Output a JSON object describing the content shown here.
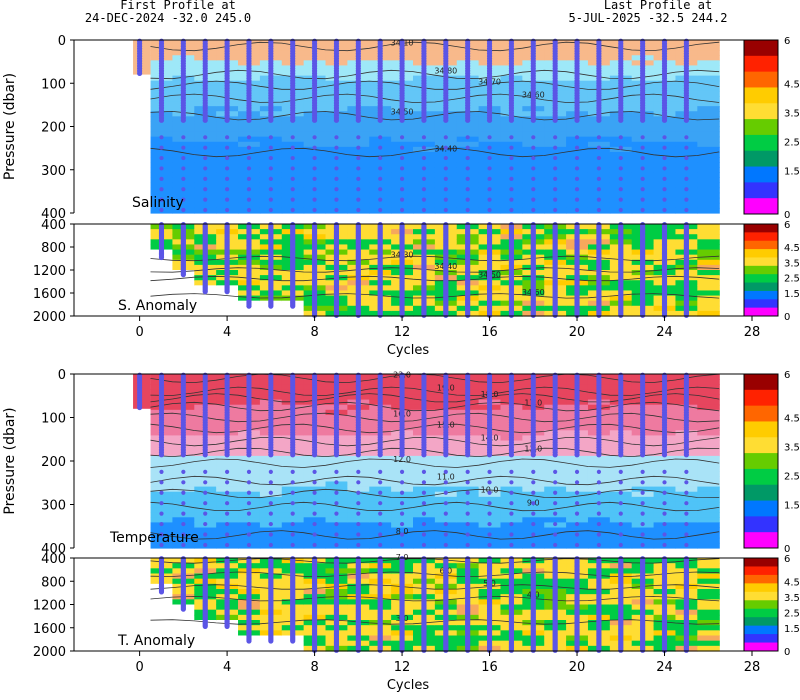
{
  "header": {
    "first_label": "First Profile at",
    "first_value": "24-DEC-2024    -32.0  245.0",
    "last_label": "Last Profile at",
    "last_value": "5-JUL-2025    -32.5  244.2"
  },
  "colors": {
    "salinity": [
      "#1e90ff",
      "#3aa3f5",
      "#63c6f7",
      "#9ee8f8",
      "#f8b98b"
    ],
    "temperature": [
      "#1e90ff",
      "#4fc3f7",
      "#a9e3f7",
      "#f3a6c6",
      "#ee7aa0",
      "#e6455e"
    ],
    "anomaly": [
      "#ff00ff",
      "#3333ff",
      "#0077ff",
      "#009966",
      "#00cc44",
      "#66cc00",
      "#ffdd33",
      "#ffcc00",
      "#ff6600",
      "#ff2200",
      "#990000"
    ],
    "profile": "#5b55e6",
    "contour": "#333333"
  },
  "chart_data": [
    {
      "type": "heatmap",
      "panel": "salinity",
      "title": "Salinity",
      "xlabel": "",
      "ylabel": "Pressure (dbar)",
      "xlim": [
        -3,
        28
      ],
      "ylim": [
        0,
        400
      ],
      "x_ticks": [
        "0",
        "4",
        "8",
        "12",
        "16",
        "20",
        "24",
        "28"
      ],
      "y_ticks": [
        "0",
        "100",
        "200",
        "300",
        "400"
      ],
      "contours": [
        {
          "label": "34.10",
          "depth": 15
        },
        {
          "label": "34.80",
          "depth": 80
        },
        {
          "label": "34.70",
          "depth": 105
        },
        {
          "label": "34.60",
          "depth": 135
        },
        {
          "label": "34.50",
          "depth": 175
        },
        {
          "label": "34.40",
          "depth": 260
        }
      ],
      "colorbar_ticks": [
        "6",
        "4.5",
        "3.5",
        "2.5",
        "1.5",
        "0"
      ]
    },
    {
      "type": "heatmap",
      "panel": "salinity-anomaly",
      "title": "S. Anomaly",
      "xlabel": "Cycles",
      "ylabel": "",
      "xlim": [
        -3,
        28
      ],
      "ylim": [
        400,
        2000
      ],
      "x_ticks": [
        "0",
        "4",
        "8",
        "12",
        "16",
        "20",
        "24",
        "28"
      ],
      "y_ticks": [
        "400",
        "800",
        "1200",
        "1600",
        "2000"
      ],
      "contours": [
        {
          "label": "34.30",
          "depth": 1000
        },
        {
          "label": "34.40",
          "depth": 1200
        },
        {
          "label": "34.50",
          "depth": 1350
        },
        {
          "label": "34.60",
          "depth": 1650
        }
      ],
      "colorbar_ticks": [
        "6",
        "4.5",
        "3.5",
        "2.5",
        "1.5",
        "0"
      ]
    },
    {
      "type": "heatmap",
      "panel": "temperature",
      "title": "Temperature",
      "xlabel": "",
      "ylabel": "Pressure (dbar)",
      "xlim": [
        -3,
        28
      ],
      "ylim": [
        0,
        400
      ],
      "x_ticks": [
        "0",
        "4",
        "8",
        "12",
        "16",
        "20",
        "24",
        "28"
      ],
      "y_ticks": [
        "0",
        "100",
        "200",
        "300",
        "400"
      ],
      "contours": [
        {
          "label": "22.0",
          "depth": 10
        },
        {
          "label": "19.0",
          "depth": 40
        },
        {
          "label": "18.0",
          "depth": 55
        },
        {
          "label": "17.0",
          "depth": 75
        },
        {
          "label": "16.0",
          "depth": 100
        },
        {
          "label": "15.0",
          "depth": 125
        },
        {
          "label": "14.0",
          "depth": 155
        },
        {
          "label": "13.0",
          "depth": 180
        },
        {
          "label": "12.0",
          "depth": 205
        },
        {
          "label": "11.0",
          "depth": 245
        },
        {
          "label": "10.0",
          "depth": 275
        },
        {
          "label": "9.0",
          "depth": 305
        },
        {
          "label": "8.0",
          "depth": 370
        }
      ],
      "colorbar_ticks": [
        "6",
        "4.5",
        "3.5",
        "2.5",
        "1.5",
        "0"
      ]
    },
    {
      "type": "heatmap",
      "panel": "temperature-anomaly",
      "title": "T. Anomaly",
      "xlabel": "Cycles",
      "ylabel": "",
      "xlim": [
        -3,
        28
      ],
      "ylim": [
        400,
        2000
      ],
      "x_ticks": [
        "0",
        "4",
        "8",
        "12",
        "16",
        "20",
        "24",
        "28"
      ],
      "y_ticks": [
        "400",
        "800",
        "1200",
        "1600",
        "2000"
      ],
      "contours": [
        {
          "label": "7.0",
          "depth": 450
        },
        {
          "label": "6.0",
          "depth": 680
        },
        {
          "label": "5.0",
          "depth": 900
        },
        {
          "label": "4.0",
          "depth": 1100
        },
        {
          "label": "3.0",
          "depth": 1500
        }
      ],
      "colorbar_ticks": [
        "6",
        "4.5",
        "3.5",
        "2.5",
        "1.5",
        "0"
      ]
    }
  ]
}
